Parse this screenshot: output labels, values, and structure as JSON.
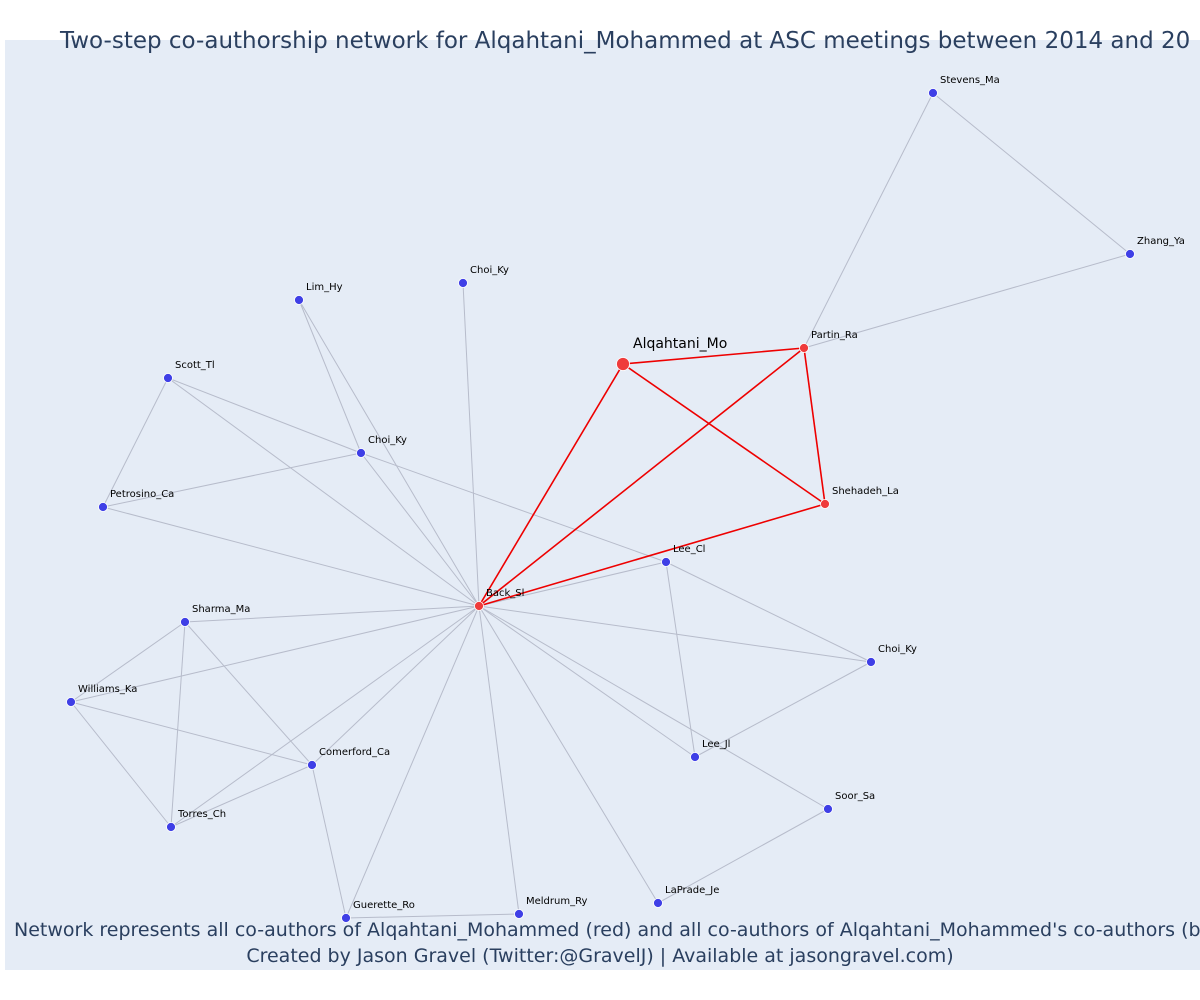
{
  "title": "Two-step co-authorship network for Alqahtani_Mohammed at ASC meetings between 2014 and 20",
  "caption": {
    "line1": "Network represents all co-authors of Alqahtani_Mohammed (red) and all co-authors of Alqahtani_Mohammed's co-authors (blue",
    "line2": "Created by Jason Gravel (Twitter:@GravelJ) | Available at jasongravel.com)"
  },
  "colors": {
    "background": "#e5ecf6",
    "first_degree_node": "#ef3b3b",
    "second_degree_node": "#3f3fe6",
    "first_degree_edge": "#ee0000",
    "second_degree_edge": "#b7bccb",
    "text": "#2a3f5f"
  },
  "nodes": [
    {
      "id": "alqahtani",
      "label": "Alqahtani_Mo",
      "group": "focal"
    },
    {
      "id": "partin",
      "label": "Partin_Ra",
      "group": "first"
    },
    {
      "id": "shehadeh",
      "label": "Shehadeh_La",
      "group": "first"
    },
    {
      "id": "back",
      "label": "Back_Sl",
      "group": "first"
    },
    {
      "id": "stevens",
      "label": "Stevens_Ma",
      "group": "second"
    },
    {
      "id": "zhang",
      "label": "Zhang_Ya",
      "group": "second"
    },
    {
      "id": "choi1",
      "label": "Choi_Ky",
      "group": "second"
    },
    {
      "id": "lim",
      "label": "Lim_Hy",
      "group": "second"
    },
    {
      "id": "scott",
      "label": "Scott_Tl",
      "group": "second"
    },
    {
      "id": "choi2",
      "label": "Choi_Ky",
      "group": "second"
    },
    {
      "id": "petrosino",
      "label": "Petrosino_Ca",
      "group": "second"
    },
    {
      "id": "lee_cl",
      "label": "Lee_Cl",
      "group": "second"
    },
    {
      "id": "sharma",
      "label": "Sharma_Ma",
      "group": "second"
    },
    {
      "id": "williams",
      "label": "Williams_Ka",
      "group": "second"
    },
    {
      "id": "choi3",
      "label": "Choi_Ky",
      "group": "second"
    },
    {
      "id": "comerford",
      "label": "Comerford_Ca",
      "group": "second"
    },
    {
      "id": "lee_jl",
      "label": "Lee_Jl",
      "group": "second"
    },
    {
      "id": "soor",
      "label": "Soor_Sa",
      "group": "second"
    },
    {
      "id": "torres",
      "label": "Torres_Ch",
      "group": "second"
    },
    {
      "id": "laprade",
      "label": "LaPrade_Je",
      "group": "second"
    },
    {
      "id": "meldrum",
      "label": "Meldrum_Ry",
      "group": "second"
    },
    {
      "id": "guerette",
      "label": "Guerette_Ro",
      "group": "second"
    }
  ],
  "edges": [
    {
      "source": "alqahtani",
      "target": "partin",
      "type": "first"
    },
    {
      "source": "alqahtani",
      "target": "shehadeh",
      "type": "first"
    },
    {
      "source": "alqahtani",
      "target": "back",
      "type": "first"
    },
    {
      "source": "partin",
      "target": "shehadeh",
      "type": "first"
    },
    {
      "source": "partin",
      "target": "back",
      "type": "first"
    },
    {
      "source": "shehadeh",
      "target": "back",
      "type": "first"
    },
    {
      "source": "partin",
      "target": "stevens",
      "type": "second"
    },
    {
      "source": "partin",
      "target": "zhang",
      "type": "second"
    },
    {
      "source": "stevens",
      "target": "zhang",
      "type": "second"
    },
    {
      "source": "back",
      "target": "choi1",
      "type": "second"
    },
    {
      "source": "back",
      "target": "lim",
      "type": "second"
    },
    {
      "source": "lim",
      "target": "choi2",
      "type": "second"
    },
    {
      "source": "back",
      "target": "scott",
      "type": "second"
    },
    {
      "source": "scott",
      "target": "choi2",
      "type": "second"
    },
    {
      "source": "scott",
      "target": "petrosino",
      "type": "second"
    },
    {
      "source": "back",
      "target": "choi2",
      "type": "second"
    },
    {
      "source": "choi2",
      "target": "petrosino",
      "type": "second"
    },
    {
      "source": "choi2",
      "target": "lee_cl",
      "type": "second"
    },
    {
      "source": "back",
      "target": "petrosino",
      "type": "second"
    },
    {
      "source": "back",
      "target": "lee_cl",
      "type": "second"
    },
    {
      "source": "back",
      "target": "choi3",
      "type": "second"
    },
    {
      "source": "lee_cl",
      "target": "choi3",
      "type": "second"
    },
    {
      "source": "lee_cl",
      "target": "lee_jl",
      "type": "second"
    },
    {
      "source": "back",
      "target": "lee_jl",
      "type": "second"
    },
    {
      "source": "lee_jl",
      "target": "choi3",
      "type": "second"
    },
    {
      "source": "back",
      "target": "soor",
      "type": "second"
    },
    {
      "source": "back",
      "target": "laprade",
      "type": "second"
    },
    {
      "source": "laprade",
      "target": "soor",
      "type": "second"
    },
    {
      "source": "back",
      "target": "meldrum",
      "type": "second"
    },
    {
      "source": "back",
      "target": "guerette",
      "type": "second"
    },
    {
      "source": "guerette",
      "target": "meldrum",
      "type": "second"
    },
    {
      "source": "back",
      "target": "comerford",
      "type": "second"
    },
    {
      "source": "back",
      "target": "torres",
      "type": "second"
    },
    {
      "source": "back",
      "target": "sharma",
      "type": "second"
    },
    {
      "source": "back",
      "target": "williams",
      "type": "second"
    },
    {
      "source": "sharma",
      "target": "williams",
      "type": "second"
    },
    {
      "source": "sharma",
      "target": "comerford",
      "type": "second"
    },
    {
      "source": "sharma",
      "target": "torres",
      "type": "second"
    },
    {
      "source": "williams",
      "target": "comerford",
      "type": "second"
    },
    {
      "source": "williams",
      "target": "torres",
      "type": "second"
    },
    {
      "source": "comerford",
      "target": "torres",
      "type": "second"
    },
    {
      "source": "comerford",
      "target": "guerette",
      "type": "second"
    }
  ]
}
